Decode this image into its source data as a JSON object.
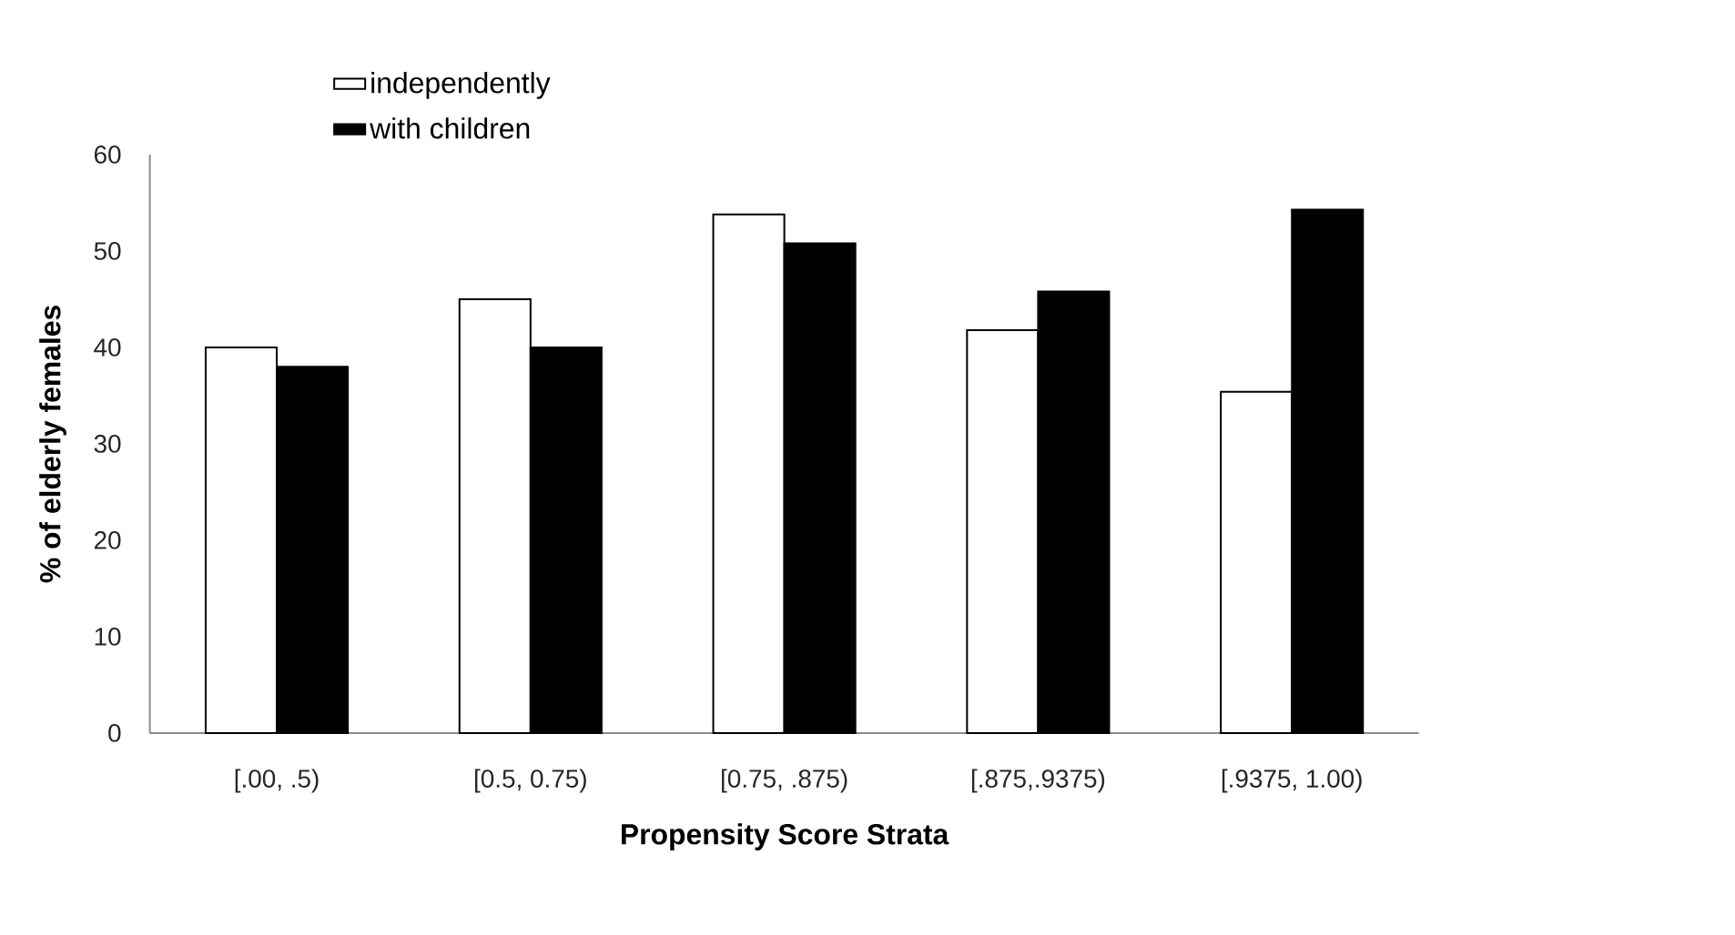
{
  "chart_data": {
    "type": "bar",
    "xlabel": "Propensity Score Strata",
    "ylabel": "% of elderly females",
    "categories": [
      "[.00, .5)",
      "[0.5, 0.75)",
      "[0.75, .875)",
      "[.875,.9375)",
      "[.9375, 1.00)"
    ],
    "series": [
      {
        "name": "independently",
        "color": "#ffffff",
        "values": [
          40,
          45,
          53.8,
          41.8,
          35.4
        ]
      },
      {
        "name": "with children",
        "color": "#000000",
        "values": [
          38,
          40,
          50.8,
          45.8,
          54.3
        ]
      }
    ],
    "ylim": [
      0,
      60
    ],
    "yticks": [
      0,
      10,
      20,
      30,
      40,
      50,
      60
    ],
    "grid": false,
    "legend": "top"
  }
}
